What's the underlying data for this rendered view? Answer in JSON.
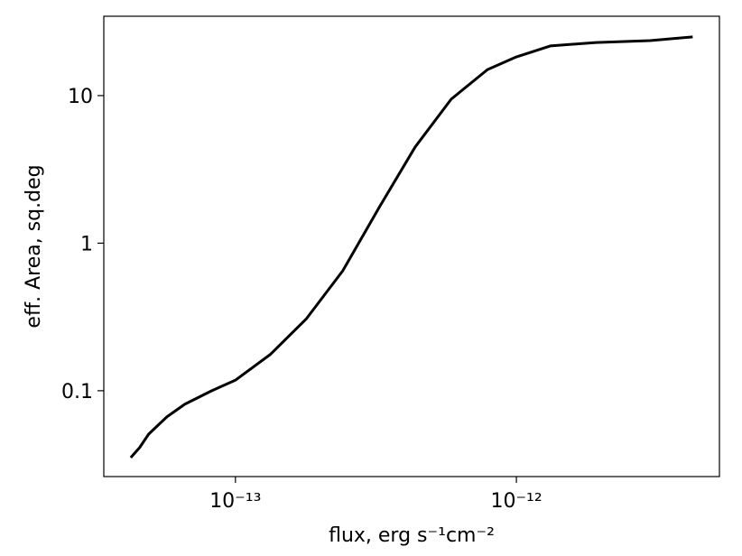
{
  "chart_data": {
    "type": "line",
    "xlabel": "flux, erg s⁻¹cm⁻²",
    "ylabel": "eff. Area, sq.deg",
    "xscale": "log",
    "yscale": "log",
    "xlim": [
      3.4e-14,
      5.28e-12
    ],
    "ylim": [
      0.0262,
      34.5
    ],
    "xticks": [
      {
        "value": 1e-13,
        "label": "10⁻¹³"
      },
      {
        "value": 1e-12,
        "label": "10⁻¹²"
      }
    ],
    "yticks": [
      0.1,
      1,
      10
    ],
    "series": [
      {
        "color": "#000000",
        "x": [
          4.24e-14,
          4.56e-14,
          4.91e-14,
          5.7e-14,
          6.6e-14,
          8.24e-14,
          1e-13,
          1.33e-13,
          1.79e-13,
          2.41e-13,
          3.25e-13,
          4.36e-13,
          5.86e-13,
          7.89e-13,
          1e-12,
          1.32e-12,
          1.92e-12,
          2.99e-12,
          4.24e-12
        ],
        "values": [
          0.0352,
          0.0412,
          0.0508,
          0.0665,
          0.081,
          0.1,
          0.118,
          0.176,
          0.308,
          0.65,
          1.75,
          4.48,
          9.46,
          15.0,
          18.3,
          21.7,
          22.9,
          23.6,
          25.0
        ]
      }
    ]
  }
}
